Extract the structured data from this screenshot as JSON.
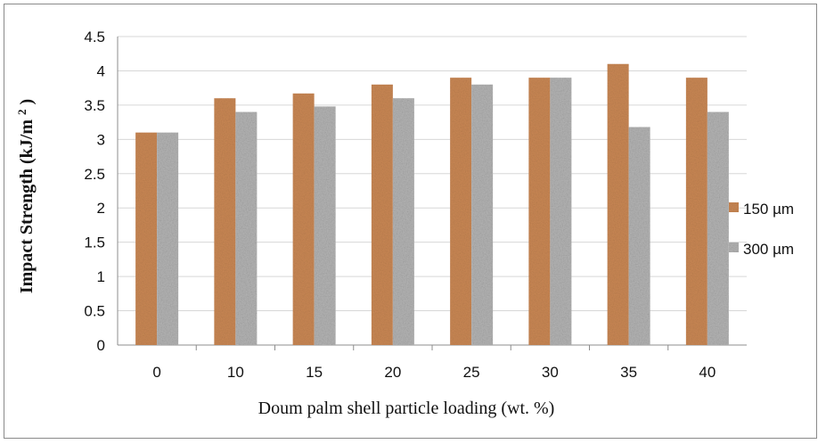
{
  "chart_data": {
    "type": "bar",
    "title": "",
    "xlabel": "Doum palm shell particle loading (wt. %)",
    "ylabel": "Impact Strength (kJ/m²)",
    "ylabel_parts": {
      "main": "Impact Strength (kJ/m",
      "superscript": "2",
      "close": ")"
    },
    "categories": [
      "0",
      "10",
      "15",
      "20",
      "25",
      "30",
      "35",
      "40"
    ],
    "series": [
      {
        "name": "150 µm",
        "values": [
          3.1,
          3.6,
          3.67,
          3.8,
          3.9,
          3.9,
          4.1,
          3.9
        ],
        "color": "#c98754"
      },
      {
        "name": "300 µm",
        "values": [
          3.1,
          3.4,
          3.48,
          3.6,
          3.8,
          3.9,
          3.18,
          3.4
        ],
        "color": "#b4b4b4"
      }
    ],
    "ylim": [
      0,
      4.5
    ],
    "yticks": [
      0,
      0.5,
      1,
      1.5,
      2,
      2.5,
      3,
      3.5,
      4,
      4.5
    ],
    "yticklabels": [
      "0",
      "0.5",
      "1",
      "1.5",
      "2",
      "2.5",
      "3",
      "3.5",
      "4",
      "4.5"
    ],
    "grid": true,
    "legend_position": "right"
  }
}
